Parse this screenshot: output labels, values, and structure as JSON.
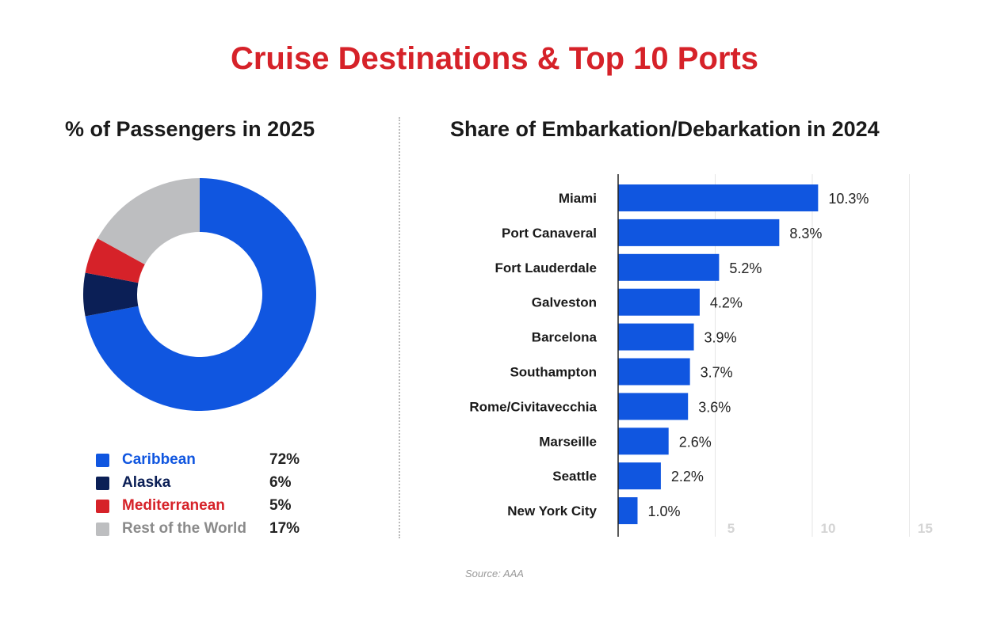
{
  "title": "Cruise Destinations & Top 10 Ports",
  "source": "Source: AAA",
  "chart_data": [
    {
      "type": "pie",
      "donut": true,
      "title": "% of Passengers in 2025",
      "legend_placement": "bottom",
      "slices": [
        {
          "name": "Caribbean",
          "value": 72,
          "label": "72%",
          "color": "#1056e0"
        },
        {
          "name": "Alaska",
          "value": 6,
          "label": "6%",
          "color": "#0b1f56"
        },
        {
          "name": "Mediterranean",
          "value": 5,
          "label": "5%",
          "color": "#d62229"
        },
        {
          "name": "Rest of the World",
          "value": 17,
          "label": "17%",
          "color": "#bdbec0"
        }
      ]
    },
    {
      "type": "bar",
      "orientation": "horizontal",
      "title": "Share of Embarkation/Debarkation in 2024",
      "categories": [
        "Miami",
        "Port Canaveral",
        "Fort Lauderdale",
        "Galveston",
        "Barcelona",
        "Southampton",
        "Rome/Civitavecchia",
        "Marseille",
        "Seattle",
        "New York City"
      ],
      "values": [
        10.3,
        8.3,
        5.2,
        4.2,
        3.9,
        3.7,
        3.6,
        2.6,
        2.2,
        1.0
      ],
      "data_labels": [
        "10.3%",
        "8.3%",
        "5.2%",
        "4.2%",
        "3.9%",
        "3.7%",
        "3.6%",
        "2.6%",
        "2.2%",
        "1.0%"
      ],
      "xticks": [
        "5",
        "10",
        "15"
      ],
      "xlim": [
        0,
        16.5
      ],
      "grid": true,
      "bar_color": "#1056e0"
    }
  ]
}
